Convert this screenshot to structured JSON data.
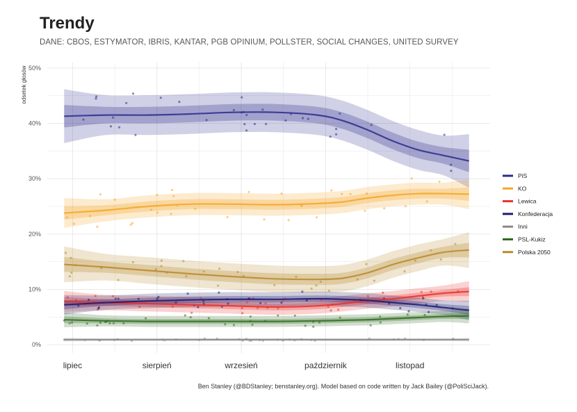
{
  "chart_data": {
    "type": "line",
    "title": "Trendy",
    "subtitle": "DANE: CBOS, ESTYMATOR, IBRIS, KANTAR, PGB OPINIUM, POLLSTER, SOCIAL CHANGES, UNITED SURVEY",
    "ylabel": "odsetek głosów",
    "xlabel": "",
    "caption": "Ben Stanley (@BDStanley; benstanley.org). Model based on code written by Jack Bailey (@PoliSciJack).",
    "ylim": [
      -1.5,
      51
    ],
    "y_ticks": [
      {
        "value": 0,
        "label": "0%"
      },
      {
        "value": 10,
        "label": "10%"
      },
      {
        "value": 20,
        "label": "20%"
      },
      {
        "value": 30,
        "label": "30%"
      },
      {
        "value": 40,
        "label": "40%"
      },
      {
        "value": 50,
        "label": "50%"
      }
    ],
    "x_ticks": [
      {
        "value": 0.1,
        "label": "lipiec"
      },
      {
        "value": 1.1,
        "label": "sierpień"
      },
      {
        "value": 2.1,
        "label": "wrzesień"
      },
      {
        "value": 3.1,
        "label": "październik"
      },
      {
        "value": 4.1,
        "label": "listopad"
      }
    ],
    "xlim": [
      -0.2,
      5.05
    ],
    "grid": true,
    "legend_position": "right",
    "x": [
      0,
      0.5,
      1,
      1.5,
      2,
      2.5,
      3,
      3.3,
      3.6,
      3.9,
      4.2,
      4.5,
      4.8
    ],
    "series": [
      {
        "name": "PiS",
        "color": "#2b2b8c",
        "values": [
          41.3,
          41.5,
          41.5,
          41.7,
          42.0,
          42.0,
          41.5,
          40.5,
          38.8,
          36.8,
          35.2,
          34.2,
          33.2
        ]
      },
      {
        "name": "KO",
        "color": "#f5a623",
        "values": [
          23.8,
          24.3,
          25.0,
          25.4,
          25.4,
          25.3,
          25.5,
          25.8,
          26.5,
          27.0,
          27.3,
          27.3,
          27.2
        ]
      },
      {
        "name": "Lewica",
        "color": "#e8302a",
        "values": [
          7.8,
          7.6,
          7.4,
          7.2,
          7.0,
          6.8,
          7.0,
          7.4,
          7.9,
          8.3,
          8.8,
          9.3,
          9.6
        ]
      },
      {
        "name": "Konfederacja",
        "color": "#1a1a6e",
        "values": [
          7.2,
          7.6,
          7.9,
          8.1,
          8.2,
          8.2,
          8.3,
          8.2,
          8.0,
          7.6,
          7.2,
          6.7,
          6.2
        ]
      },
      {
        "name": "Inni",
        "color": "#888888",
        "values": [
          0.9,
          0.9,
          0.9,
          0.9,
          0.9,
          0.9,
          0.9,
          0.9,
          0.9,
          0.9,
          0.9,
          0.9,
          0.9
        ]
      },
      {
        "name": "PSL-Kukiz",
        "color": "#2e6b1e",
        "values": [
          4.5,
          4.3,
          4.2,
          4.2,
          4.2,
          4.2,
          4.3,
          4.4,
          4.5,
          4.7,
          4.9,
          5.1,
          5.2
        ]
      },
      {
        "name": "Polska 2050",
        "color": "#b8882a",
        "values": [
          14.5,
          14.0,
          13.4,
          12.8,
          12.3,
          11.9,
          11.8,
          12.0,
          13.0,
          14.5,
          15.7,
          16.7,
          17.1
        ]
      }
    ]
  }
}
